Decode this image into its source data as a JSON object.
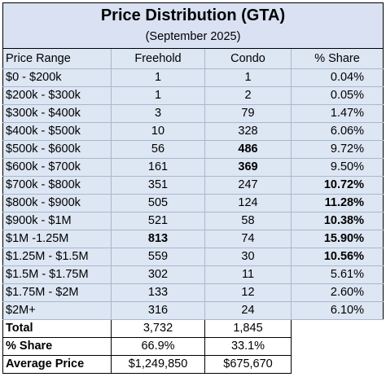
{
  "title": "Price Distribution (GTA)",
  "subtitle": "(September 2025)",
  "headers": [
    "Price Range",
    "Freehold",
    "Condo",
    "% Share"
  ],
  "rows": [
    {
      "range": "$0 - $200k",
      "freehold": "1",
      "condo": "1",
      "share": "0.04%",
      "bold_freehold": false,
      "bold_condo": false,
      "bold_share": false
    },
    {
      "range": "$200k - $300k",
      "freehold": "1",
      "condo": "2",
      "share": "0.05%",
      "bold_freehold": false,
      "bold_condo": false,
      "bold_share": false
    },
    {
      "range": "$300k - $400k",
      "freehold": "3",
      "condo": "79",
      "share": "1.47%",
      "bold_freehold": false,
      "bold_condo": false,
      "bold_share": false
    },
    {
      "range": "$400k - $500k",
      "freehold": "10",
      "condo": "328",
      "share": "6.06%",
      "bold_freehold": false,
      "bold_condo": false,
      "bold_share": false
    },
    {
      "range": "$500k - $600k",
      "freehold": "56",
      "condo": "486",
      "share": "9.72%",
      "bold_freehold": false,
      "bold_condo": true,
      "bold_share": false
    },
    {
      "range": "$600k - $700k",
      "freehold": "161",
      "condo": "369",
      "share": "9.50%",
      "bold_freehold": false,
      "bold_condo": true,
      "bold_share": false
    },
    {
      "range": "$700k - $800k",
      "freehold": "351",
      "condo": "247",
      "share": "10.72%",
      "bold_freehold": false,
      "bold_condo": false,
      "bold_share": true
    },
    {
      "range": "$800k - $900k",
      "freehold": "505",
      "condo": "124",
      "share": "11.28%",
      "bold_freehold": false,
      "bold_condo": false,
      "bold_share": true
    },
    {
      "range": "$900k - $1M",
      "freehold": "521",
      "condo": "58",
      "share": "10.38%",
      "bold_freehold": false,
      "bold_condo": false,
      "bold_share": true
    },
    {
      "range": "$1M -1.25M",
      "freehold": "813",
      "condo": "74",
      "share": "15.90%",
      "bold_freehold": true,
      "bold_condo": false,
      "bold_share": true
    },
    {
      "range": "$1.25M - $1.5M",
      "freehold": "559",
      "condo": "30",
      "share": "10.56%",
      "bold_freehold": false,
      "bold_condo": false,
      "bold_share": true
    },
    {
      "range": "$1.5M - $1.75M",
      "freehold": "302",
      "condo": "11",
      "share": "5.61%",
      "bold_freehold": false,
      "bold_condo": false,
      "bold_share": false
    },
    {
      "range": "$1.75M - $2M",
      "freehold": "133",
      "condo": "12",
      "share": "2.60%",
      "bold_freehold": false,
      "bold_condo": false,
      "bold_share": false
    },
    {
      "range": "$2M+",
      "freehold": "316",
      "condo": "24",
      "share": "6.10%",
      "bold_freehold": false,
      "bold_condo": false,
      "bold_share": false
    }
  ],
  "footer": [
    {
      "label": "Total",
      "freehold": "3,732",
      "condo": "1,845"
    },
    {
      "label": "% Share",
      "freehold": "66.9%",
      "condo": "33.1%"
    },
    {
      "label": "Average Price",
      "freehold": "$1,249,850",
      "condo": "$675,670"
    }
  ],
  "colors": {
    "header_fill": "#d9e1f2",
    "body_fill": "#dde6f3",
    "grid": "#a9b8cc",
    "border": "#000000"
  }
}
